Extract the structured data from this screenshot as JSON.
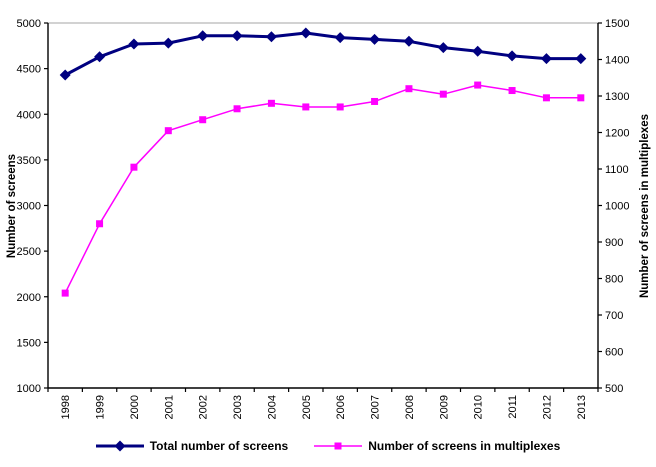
{
  "chart_data": {
    "type": "line",
    "title": "",
    "categories": [
      "1998",
      "1999",
      "2000",
      "2001",
      "2002",
      "2003",
      "2004",
      "2005",
      "2006",
      "2007",
      "2008",
      "2009",
      "2010",
      "2011",
      "2012",
      "2013"
    ],
    "series": [
      {
        "name": "Total number of screens",
        "axis": "left",
        "color": "#000080",
        "marker": "diamond",
        "line_width": 3,
        "values": [
          4430,
          4630,
          4770,
          4780,
          4860,
          4860,
          4850,
          4890,
          4840,
          4820,
          4800,
          4730,
          4690,
          4640,
          4610,
          4610
        ]
      },
      {
        "name": "Number of screens in multiplexes",
        "axis": "right",
        "color": "#FF00FF",
        "marker": "square",
        "line_width": 1.5,
        "values": [
          760,
          950,
          1105,
          1205,
          1235,
          1265,
          1280,
          1270,
          1270,
          1285,
          1320,
          1305,
          1330,
          1315,
          1295,
          1295
        ]
      }
    ],
    "left_axis": {
      "label": "Number of screens",
      "min": 1000,
      "max": 5000,
      "step": 500,
      "ticks": [
        1000,
        1500,
        2000,
        2500,
        3000,
        3500,
        4000,
        4500,
        5000
      ]
    },
    "right_axis": {
      "label": "Number of screens in multiplexes",
      "min": 500,
      "max": 1500,
      "step": 100,
      "ticks": [
        500,
        600,
        700,
        800,
        900,
        1000,
        1100,
        1200,
        1300,
        1400,
        1500
      ]
    },
    "legend": {
      "position": "bottom",
      "entries": [
        "Total number of screens",
        "Number of screens in multiplexes"
      ]
    },
    "plot": {
      "background": "#FFFFFF",
      "top_border_color": "#A6A6A6",
      "axis_color": "#000000"
    }
  }
}
